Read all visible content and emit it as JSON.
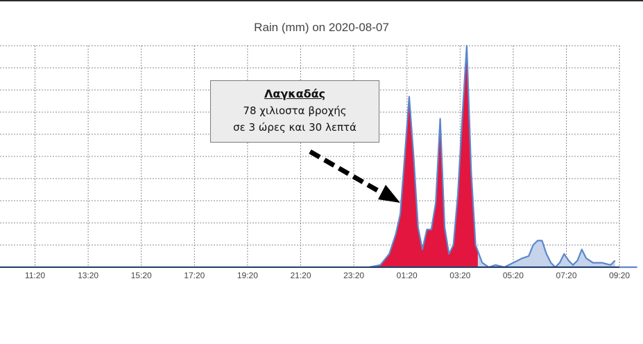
{
  "chart_data": {
    "type": "area",
    "title": "Rain (mm) on 2020-08-07",
    "xlabel": "",
    "ylabel": "",
    "grid": true,
    "x_ticks": [
      "11:20",
      "13:20",
      "15:20",
      "17:20",
      "19:20",
      "21:20",
      "23:20",
      "01:20",
      "03:20",
      "05:20",
      "07:20",
      "09:20"
    ],
    "ylim": [
      0,
      10
    ],
    "series": [
      {
        "name": "",
        "color": "#5b86cc",
        "fill": "#e3163f",
        "points": [
          [
            "10:00",
            0
          ],
          [
            "23:55",
            0
          ],
          [
            "00:20",
            0.1
          ],
          [
            "00:40",
            0.6
          ],
          [
            "00:55",
            1.5
          ],
          [
            "01:05",
            2.4
          ],
          [
            "01:15",
            5.0
          ],
          [
            "01:25",
            7.7
          ],
          [
            "01:35",
            5.0
          ],
          [
            "01:45",
            1.8
          ],
          [
            "01:55",
            0.8
          ],
          [
            "02:05",
            1.7
          ],
          [
            "02:15",
            1.7
          ],
          [
            "02:25",
            2.9
          ],
          [
            "02:35",
            6.7
          ],
          [
            "02:45",
            1.8
          ],
          [
            "02:55",
            0.6
          ],
          [
            "03:05",
            1.0
          ],
          [
            "03:15",
            3.3
          ],
          [
            "03:25",
            6.8
          ],
          [
            "03:35",
            10.0
          ],
          [
            "03:45",
            4.3
          ],
          [
            "03:55",
            1.0
          ],
          [
            "04:10",
            0.2
          ],
          [
            "04:25",
            0.0
          ],
          [
            "04:40",
            0.1
          ],
          [
            "05:00",
            0.0
          ],
          [
            "05:20",
            0.2
          ],
          [
            "05:40",
            0.4
          ],
          [
            "05:55",
            0.5
          ],
          [
            "06:05",
            1.0
          ],
          [
            "06:15",
            1.2
          ],
          [
            "06:25",
            1.2
          ],
          [
            "06:35",
            0.6
          ],
          [
            "06:45",
            0.2
          ],
          [
            "06:55",
            0.0
          ],
          [
            "07:05",
            0.2
          ],
          [
            "07:15",
            0.6
          ],
          [
            "07:25",
            0.3
          ],
          [
            "07:35",
            0.1
          ],
          [
            "07:45",
            0.3
          ],
          [
            "07:55",
            0.8
          ],
          [
            "08:05",
            0.4
          ],
          [
            "08:20",
            0.2
          ],
          [
            "08:40",
            0.2
          ],
          [
            "09:00",
            0.1
          ],
          [
            "09:10",
            0.3
          ]
        ]
      }
    ],
    "rain_end": "04:00",
    "annotation": {
      "heading": "Λαγκαδάς",
      "line1": "78 χιλιοστα βροχής",
      "line2": "σε 3 ώρες και 30 λεπτά"
    }
  }
}
